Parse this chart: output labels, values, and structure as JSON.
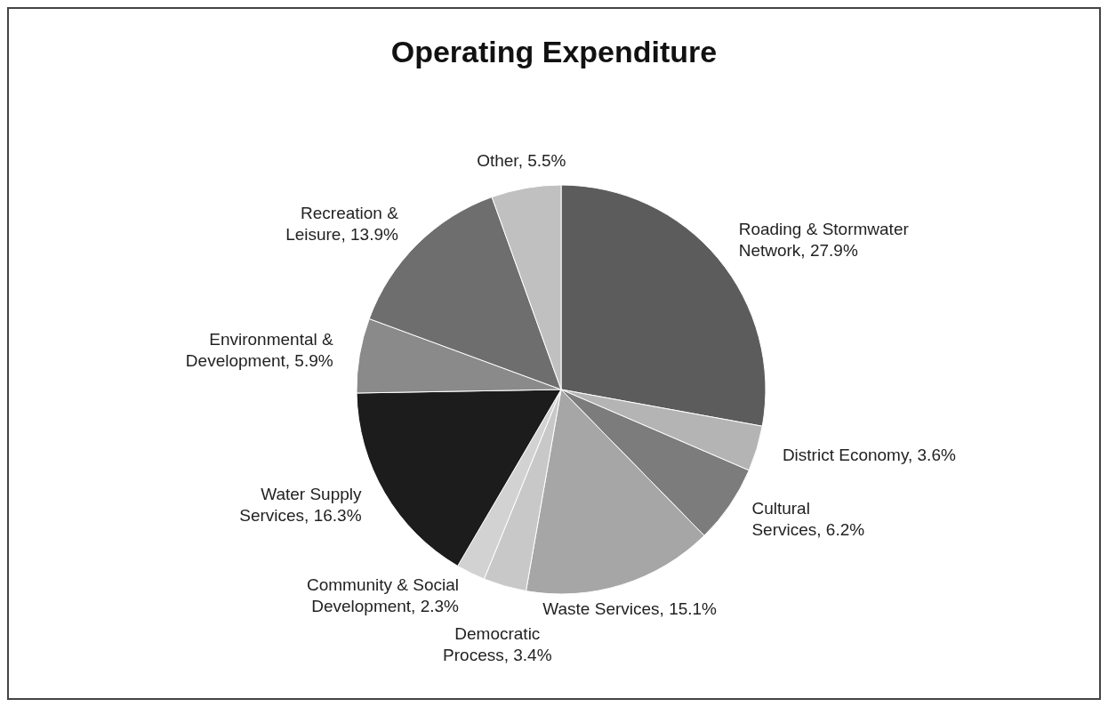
{
  "chart_data": {
    "type": "pie",
    "title": "Operating Expenditure",
    "categories": [
      "Roading & Stormwater Network",
      "District Economy",
      "Cultural Services",
      "Waste Services",
      "Democratic Process",
      "Community & Social Development",
      "Water Supply Services",
      "Environmental & Development",
      "Recreation & Leisure",
      "Other"
    ],
    "values": [
      27.9,
      3.6,
      6.2,
      15.1,
      3.4,
      2.3,
      16.3,
      5.9,
      13.9,
      5.5
    ],
    "value_labels": [
      "27.9%",
      "3.6%",
      "6.2%",
      "15.1%",
      "3.4%",
      "2.3%",
      "16.3%",
      "5.9%",
      "13.9%",
      "5.5%"
    ],
    "colors": [
      "#5c5c5c",
      "#b4b4b4",
      "#7c7c7c",
      "#a6a6a6",
      "#c8c8c8",
      "#d2d2d2",
      "#1c1c1c",
      "#8a8a8a",
      "#6e6e6e",
      "#c0c0c0"
    ]
  }
}
